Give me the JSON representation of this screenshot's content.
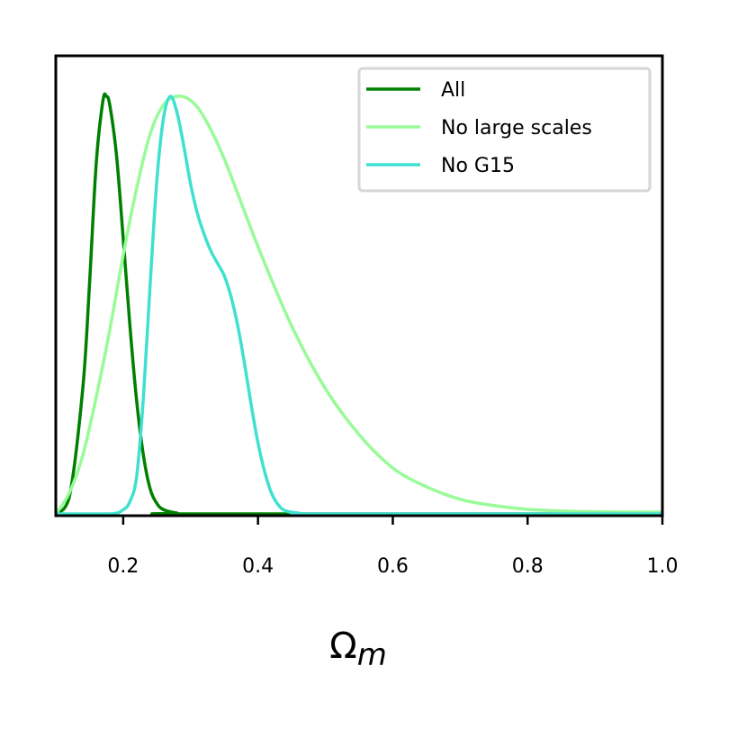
{
  "chart_data": {
    "type": "line",
    "title": "",
    "xlabel_main": "Ω",
    "xlabel_sub": "m",
    "ylabel": "",
    "xlim": [
      0.1,
      1.0
    ],
    "ylim": [
      0,
      1.0
    ],
    "xticks": [
      0.2,
      0.4,
      0.6,
      0.8,
      1.0
    ],
    "xtick_labels": [
      "0.2",
      "0.4",
      "0.6",
      "0.8",
      "1.0"
    ],
    "yticks_visible": false,
    "grid": false,
    "legend_position": "top-right",
    "series": [
      {
        "name": "All",
        "color": "#008000",
        "x": [
          0.1,
          0.12,
          0.14,
          0.15,
          0.16,
          0.17,
          0.175,
          0.18,
          0.19,
          0.2,
          0.21,
          0.22,
          0.23,
          0.24,
          0.25,
          0.26,
          0.28,
          0.3,
          1.0
        ],
        "y": [
          0.0,
          0.04,
          0.3,
          0.55,
          0.84,
          0.99,
          1.0,
          0.98,
          0.86,
          0.66,
          0.45,
          0.27,
          0.14,
          0.06,
          0.025,
          0.01,
          0.002,
          0.0,
          0.0
        ]
      },
      {
        "name": "No large scales",
        "color": "#98fb98",
        "x": [
          0.1,
          0.12,
          0.14,
          0.16,
          0.18,
          0.2,
          0.22,
          0.24,
          0.26,
          0.28,
          0.3,
          0.32,
          0.35,
          0.4,
          0.45,
          0.5,
          0.55,
          0.6,
          0.65,
          0.7,
          0.75,
          0.8,
          0.85,
          0.9,
          1.0
        ],
        "y": [
          0.0,
          0.05,
          0.14,
          0.28,
          0.44,
          0.62,
          0.78,
          0.91,
          0.98,
          1.0,
          0.99,
          0.95,
          0.85,
          0.64,
          0.45,
          0.3,
          0.19,
          0.11,
          0.065,
          0.035,
          0.02,
          0.011,
          0.007,
          0.005,
          0.004
        ]
      },
      {
        "name": "No G15",
        "color": "#40e0d0",
        "x": [
          0.1,
          0.18,
          0.2,
          0.21,
          0.22,
          0.23,
          0.24,
          0.25,
          0.26,
          0.27,
          0.28,
          0.29,
          0.3,
          0.31,
          0.32,
          0.33,
          0.34,
          0.35,
          0.36,
          0.37,
          0.38,
          0.39,
          0.4,
          0.41,
          0.42,
          0.43,
          0.44,
          0.46,
          0.5,
          1.0
        ],
        "y": [
          0.0,
          0.0,
          0.01,
          0.03,
          0.09,
          0.28,
          0.55,
          0.8,
          0.95,
          1.0,
          0.96,
          0.88,
          0.79,
          0.72,
          0.67,
          0.63,
          0.6,
          0.57,
          0.52,
          0.45,
          0.36,
          0.26,
          0.17,
          0.1,
          0.05,
          0.022,
          0.008,
          0.002,
          0.0,
          0.0
        ]
      }
    ]
  }
}
